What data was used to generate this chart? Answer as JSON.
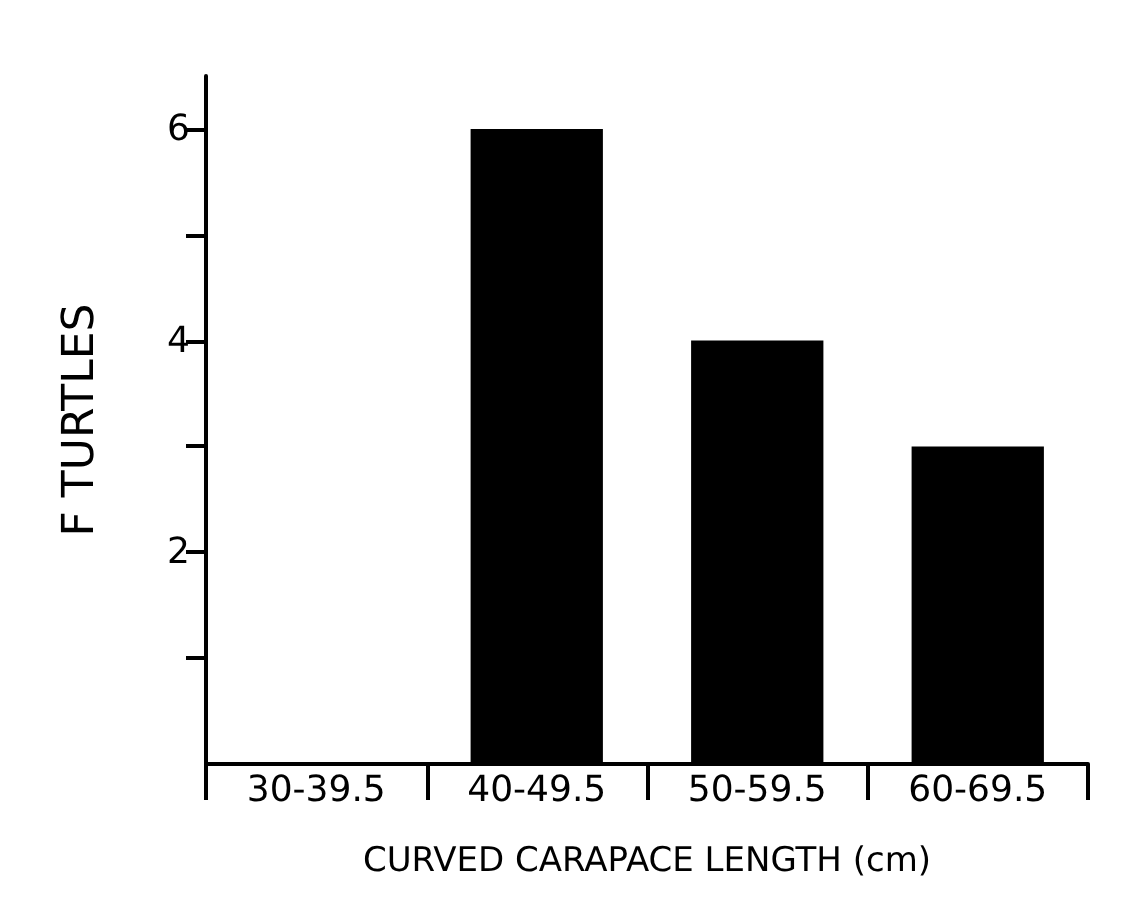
{
  "chart_data": {
    "type": "bar",
    "xlabel": "CURVED CARAPACE LENGTH (cm)",
    "ylabel": "F TURTLES",
    "categories": [
      "30-39.5",
      "40-49.5",
      "50-59.5",
      "60-69.5"
    ],
    "values": [
      0,
      6,
      4,
      3
    ],
    "color": "#000000",
    "ylim": [
      0,
      6.5
    ],
    "yticks": [
      {
        "value": 1,
        "label": null
      },
      2,
      {
        "value": 3,
        "label": null
      },
      4,
      {
        "value": 5,
        "label": null
      },
      6
    ],
    "grid": false
  }
}
